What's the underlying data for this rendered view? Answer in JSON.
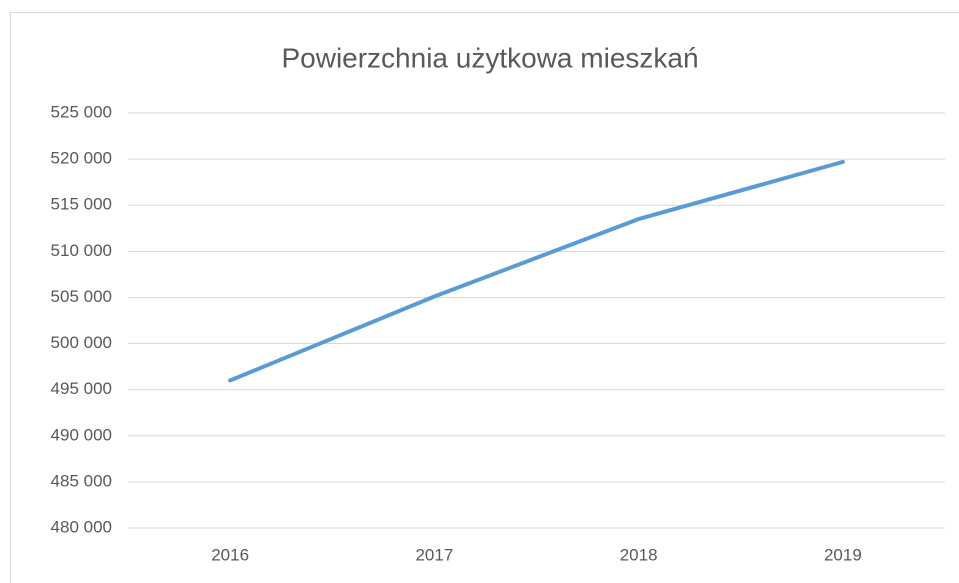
{
  "chart_data": {
    "type": "line",
    "title": "Powierzchnia użytkowa mieszkań",
    "categories": [
      "2016",
      "2017",
      "2018",
      "2019"
    ],
    "values": [
      496000,
      505100,
      513500,
      519700
    ],
    "color": "#5b9bd5",
    "ylim": [
      480000,
      525000
    ],
    "yticks": [
      {
        "value": 480000,
        "label": "480 000"
      },
      {
        "value": 485000,
        "label": "485 000"
      },
      {
        "value": 490000,
        "label": "490 000"
      },
      {
        "value": 495000,
        "label": "495 000"
      },
      {
        "value": 500000,
        "label": "500 000"
      },
      {
        "value": 505000,
        "label": "505 000"
      },
      {
        "value": 510000,
        "label": "510 000"
      },
      {
        "value": 515000,
        "label": "515 000"
      },
      {
        "value": 520000,
        "label": "520 000"
      },
      {
        "value": 525000,
        "label": "525 000"
      }
    ],
    "grid": true
  }
}
